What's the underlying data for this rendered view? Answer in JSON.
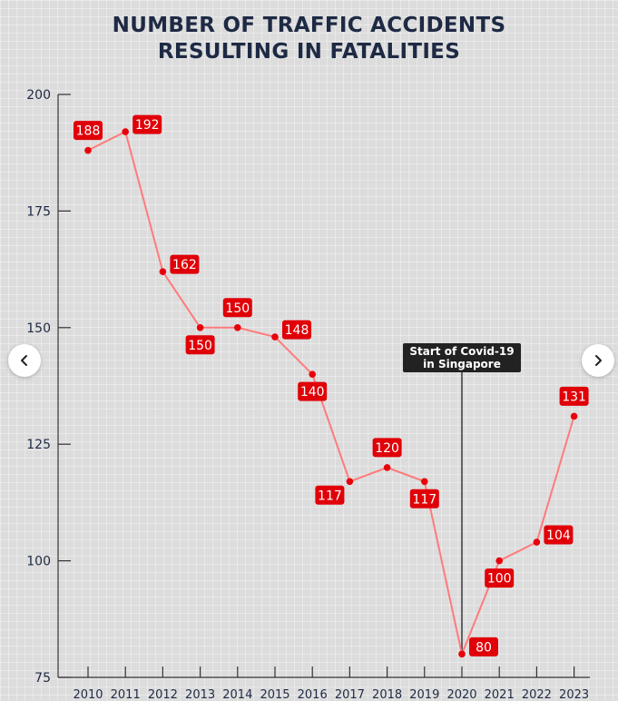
{
  "title_lines": [
    "NUMBER OF TRAFFIC ACCIDENTS",
    "RESULTING IN FATALITIES"
  ],
  "nav": {
    "prev_icon": "chevron-left-icon",
    "next_icon": "chevron-right-icon"
  },
  "chart_data": {
    "type": "line",
    "title": "NUMBER OF TRAFFIC ACCIDENTS RESULTING IN FATALITIES",
    "xlabel": "",
    "ylabel": "",
    "x": [
      "2010",
      "2011",
      "2012",
      "2013",
      "2014",
      "2015",
      "2016",
      "2017",
      "2018",
      "2019",
      "2020",
      "2021",
      "2022",
      "2023"
    ],
    "values": [
      188,
      192,
      162,
      150,
      150,
      148,
      140,
      117,
      120,
      117,
      80,
      100,
      104,
      131
    ],
    "label_positions": [
      "above",
      "right",
      "right",
      "below",
      "above",
      "right",
      "below",
      "left",
      "above",
      "below",
      "right",
      "below",
      "right",
      "above"
    ],
    "ylim": [
      75,
      200
    ],
    "yticks": [
      75,
      100,
      125,
      150,
      175,
      200
    ],
    "grid": false,
    "line_color": "#ff7b7b",
    "marker_color": "#e8000b",
    "label_bg": "#e00008",
    "annotation": {
      "x": "2020",
      "lines": [
        "Start of Covid-19",
        "in Singapore"
      ],
      "bg": "#222222"
    }
  }
}
